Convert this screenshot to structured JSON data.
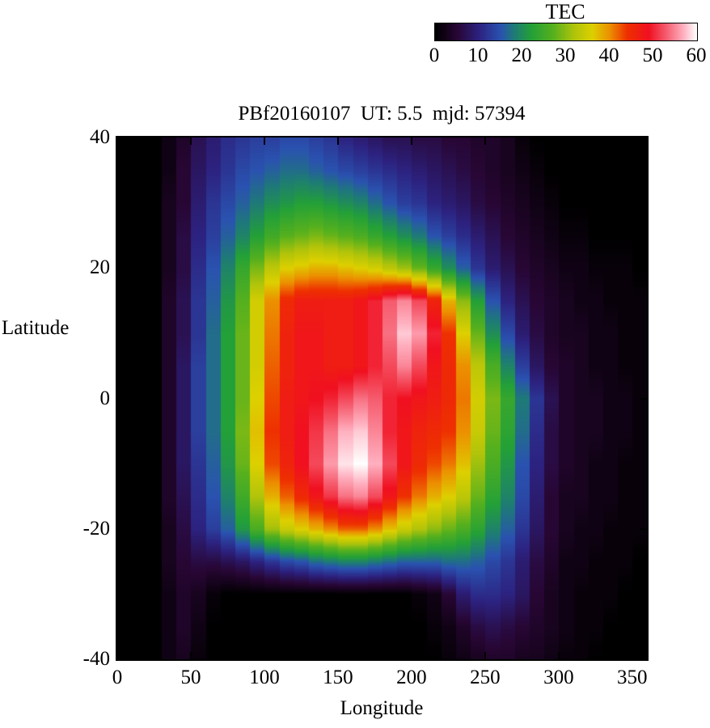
{
  "title": "PBf20160107  UT: 5.5  mjd: 57394",
  "colorbar": {
    "title": "TEC",
    "ticks": [
      0,
      10,
      20,
      30,
      40,
      50,
      60
    ],
    "min": 0,
    "max": 60
  },
  "axes": {
    "x_label": "Longitude",
    "y_label": "Latitude",
    "x_ticks": [
      0,
      50,
      100,
      150,
      200,
      250,
      300,
      350
    ],
    "x_range": [
      0,
      360
    ],
    "y_ticks": [
      40,
      20,
      0,
      -20,
      -40
    ],
    "y_range": [
      -40,
      40
    ]
  },
  "chart_data": {
    "type": "heatmap",
    "title": "PBf20160107  UT: 5.5  mjd: 57394",
    "xlabel": "Longitude",
    "ylabel": "Latitude",
    "x_range": [
      0,
      360
    ],
    "y_range": [
      -40,
      40
    ],
    "colorbar_label": "TEC",
    "colorbar_range": [
      0,
      60
    ],
    "lon_step": 10,
    "lat_values": [
      40,
      35,
      30,
      25,
      20,
      15,
      10,
      5,
      0,
      -5,
      -10,
      -15,
      -20,
      -25,
      -30,
      -35,
      -40
    ],
    "colormap": [
      [
        0,
        "#000000"
      ],
      [
        5,
        "#280634"
      ],
      [
        10,
        "#2c2280"
      ],
      [
        15,
        "#2a52b0"
      ],
      [
        18,
        "#1e7a78"
      ],
      [
        22,
        "#23a038"
      ],
      [
        27,
        "#55b01e"
      ],
      [
        32,
        "#b2c40a"
      ],
      [
        36,
        "#ddd000"
      ],
      [
        40,
        "#ec9000"
      ],
      [
        44,
        "#ee3000"
      ],
      [
        49,
        "#f01020"
      ],
      [
        53,
        "#f55c6e"
      ],
      [
        57,
        "#ffb0c0"
      ],
      [
        60,
        "#ffffff"
      ]
    ],
    "grid": [
      [
        0,
        0,
        0,
        2,
        4,
        7,
        9,
        11,
        12,
        13,
        13,
        14,
        14,
        13,
        12,
        10,
        9,
        8,
        7,
        7,
        6,
        6,
        5,
        5,
        4,
        4,
        3,
        1,
        0,
        0,
        0,
        0,
        0,
        0,
        0,
        0
      ],
      [
        0,
        0,
        0,
        2,
        5,
        8,
        10,
        12,
        14,
        15,
        16,
        17,
        17,
        16,
        15,
        14,
        13,
        12,
        11,
        10,
        9,
        8,
        7,
        6,
        5,
        4,
        3,
        2,
        1,
        0,
        0,
        0,
        0,
        0,
        0,
        0
      ],
      [
        0,
        0,
        0,
        3,
        5,
        9,
        12,
        14,
        16,
        18,
        20,
        21,
        22,
        22,
        21,
        20,
        19,
        17,
        15,
        13,
        12,
        10,
        9,
        8,
        6,
        5,
        4,
        3,
        2,
        1,
        0,
        0,
        0,
        0,
        0,
        0
      ],
      [
        0,
        0,
        0,
        3,
        6,
        10,
        13,
        16,
        19,
        22,
        25,
        27,
        28,
        29,
        28,
        27,
        26,
        24,
        22,
        20,
        18,
        15,
        13,
        11,
        9,
        7,
        5,
        4,
        3,
        2,
        1,
        1,
        0,
        0,
        0,
        0
      ],
      [
        0,
        0,
        0,
        3,
        6,
        11,
        15,
        19,
        24,
        29,
        33,
        36,
        37,
        38,
        38,
        37,
        36,
        35,
        33,
        31,
        28,
        24,
        20,
        16,
        12,
        9,
        7,
        5,
        4,
        3,
        2,
        2,
        1,
        1,
        1,
        0
      ],
      [
        0,
        0,
        0,
        4,
        7,
        12,
        16,
        21,
        27,
        35,
        40,
        45,
        47,
        47,
        47,
        47,
        48,
        50,
        53,
        55,
        52,
        46,
        38,
        30,
        22,
        15,
        10,
        7,
        5,
        4,
        3,
        2,
        2,
        1,
        1,
        1
      ],
      [
        0,
        0,
        0,
        4,
        7,
        12,
        17,
        22,
        28,
        35,
        41,
        46,
        48,
        48,
        47,
        47,
        48,
        50,
        54,
        58,
        56,
        50,
        44,
        36,
        28,
        20,
        14,
        9,
        6,
        4,
        3,
        3,
        2,
        2,
        1,
        1
      ],
      [
        0,
        0,
        0,
        4,
        8,
        13,
        17,
        22,
        28,
        35,
        42,
        46,
        48,
        48,
        47,
        47,
        48,
        50,
        52,
        55,
        52,
        48,
        45,
        40,
        33,
        26,
        19,
        13,
        8,
        5,
        4,
        3,
        2,
        2,
        1,
        1
      ],
      [
        0,
        0,
        0,
        4,
        8,
        13,
        17,
        22,
        28,
        36,
        43,
        47,
        48,
        49,
        50,
        52,
        54,
        53,
        50,
        49,
        48,
        47,
        45,
        41,
        35,
        29,
        24,
        18,
        12,
        7,
        4,
        3,
        3,
        2,
        2,
        1
      ],
      [
        0,
        0,
        0,
        4,
        8,
        13,
        17,
        22,
        29,
        37,
        44,
        47,
        49,
        51,
        54,
        57,
        58,
        55,
        50,
        48,
        46,
        45,
        44,
        40,
        34,
        28,
        23,
        17,
        11,
        6,
        4,
        3,
        3,
        2,
        2,
        1
      ],
      [
        0,
        0,
        0,
        4,
        8,
        12,
        16,
        21,
        28,
        36,
        43,
        46,
        49,
        52,
        56,
        59,
        60,
        57,
        52,
        48,
        45,
        43,
        41,
        37,
        31,
        26,
        21,
        15,
        10,
        6,
        4,
        3,
        2,
        2,
        1,
        1
      ],
      [
        0,
        0,
        0,
        4,
        7,
        11,
        15,
        19,
        25,
        32,
        38,
        42,
        45,
        48,
        51,
        54,
        55,
        52,
        48,
        44,
        41,
        38,
        36,
        33,
        28,
        23,
        19,
        14,
        9,
        5,
        3,
        3,
        2,
        2,
        1,
        1
      ],
      [
        0,
        0,
        0,
        3,
        6,
        10,
        13,
        16,
        21,
        26,
        31,
        34,
        36,
        38,
        40,
        42,
        42,
        40,
        37,
        34,
        32,
        30,
        28,
        26,
        23,
        19,
        16,
        12,
        8,
        5,
        3,
        2,
        2,
        1,
        1,
        1
      ],
      [
        0,
        0,
        0,
        3,
        5,
        6,
        6,
        7,
        8,
        10,
        12,
        14,
        15,
        17,
        18,
        19,
        19,
        18,
        17,
        16,
        16,
        16,
        17,
        17,
        16,
        14,
        12,
        9,
        6,
        4,
        2,
        2,
        1,
        1,
        1,
        0
      ],
      [
        0,
        0,
        0,
        2,
        4,
        3,
        1,
        0,
        0,
        0,
        0,
        0,
        0,
        0,
        0,
        0,
        0,
        0,
        0,
        0,
        1,
        2,
        5,
        9,
        11,
        11,
        10,
        8,
        5,
        3,
        2,
        1,
        1,
        1,
        0,
        0
      ],
      [
        0,
        0,
        0,
        2,
        4,
        2,
        0,
        0,
        0,
        0,
        0,
        0,
        0,
        0,
        0,
        0,
        0,
        0,
        0,
        0,
        0,
        1,
        2,
        4,
        6,
        7,
        6,
        5,
        4,
        3,
        2,
        1,
        1,
        0,
        0,
        0
      ],
      [
        0,
        0,
        0,
        2,
        3,
        1,
        0,
        0,
        0,
        0,
        0,
        0,
        0,
        0,
        0,
        0,
        0,
        0,
        0,
        0,
        0,
        0,
        1,
        2,
        3,
        4,
        4,
        3,
        3,
        2,
        1,
        1,
        0,
        0,
        0,
        0
      ]
    ]
  }
}
